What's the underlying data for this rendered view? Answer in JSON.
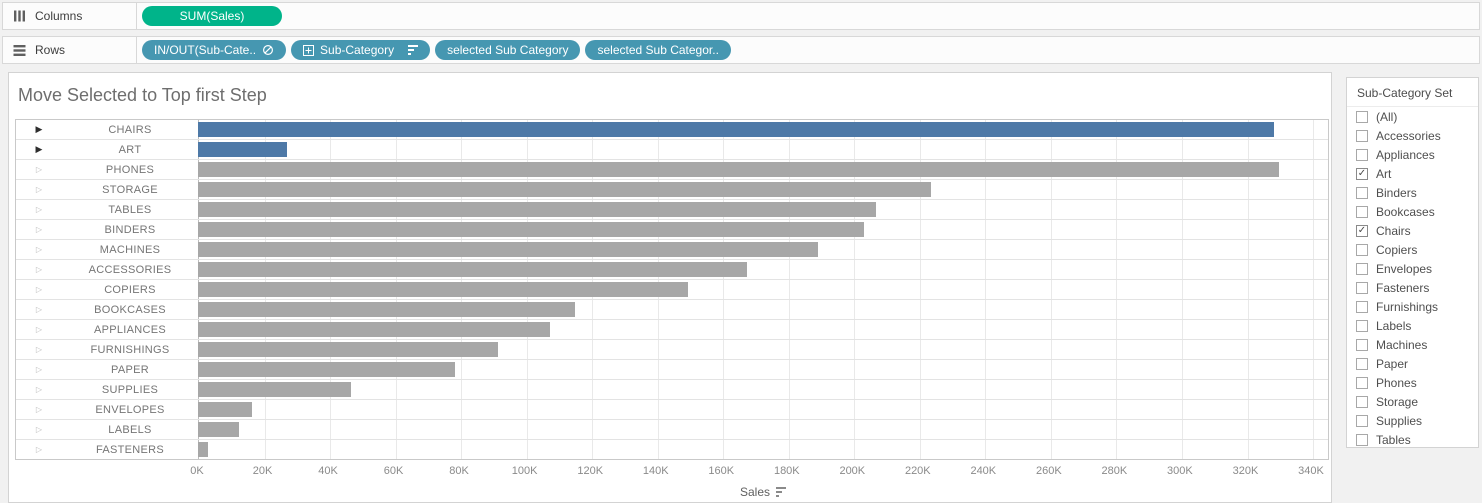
{
  "colors": {
    "green_pill": "#00b48a",
    "blue_pill": "#4697b1",
    "bar_in": "#4e79a7",
    "bar_out": "#a7a7a7"
  },
  "icons": {
    "row_marker_in": "▶",
    "row_marker_out": "▷",
    "checkbox_check": "✓"
  },
  "shelves": {
    "columns": {
      "label": "Columns",
      "pills": [
        {
          "text": "SUM(Sales)",
          "type": "green"
        }
      ]
    },
    "rows": {
      "label": "Rows",
      "pills": [
        {
          "text": "IN/OUT(Sub-Cate..",
          "type": "blue",
          "icon_right": "set-icon"
        },
        {
          "text": "Sub-Category",
          "type": "blue",
          "icon_left": "expand-box-icon",
          "icon_right": "sort-desc-icon"
        },
        {
          "text": "selected Sub Category",
          "type": "blue"
        },
        {
          "text": "selected Sub Categor..",
          "type": "blue"
        }
      ]
    }
  },
  "chart_data": {
    "type": "bar",
    "title": "Move Selected to Top first Step",
    "xlabel": "Sales",
    "orientation": "horizontal",
    "x_ticks": [
      "0K",
      "20K",
      "40K",
      "60K",
      "80K",
      "100K",
      "120K",
      "140K",
      "160K",
      "180K",
      "200K",
      "220K",
      "240K",
      "260K",
      "280K",
      "300K",
      "320K",
      "340K"
    ],
    "x_tick_step_k": 20,
    "x_max_k": 345.5,
    "rows": [
      {
        "label": "CHAIRS",
        "value_k": 328.4,
        "in_set": true
      },
      {
        "label": "ART",
        "value_k": 27.1,
        "in_set": true
      },
      {
        "label": "PHONES",
        "value_k": 330.0,
        "in_set": false
      },
      {
        "label": "STORAGE",
        "value_k": 223.8,
        "in_set": false
      },
      {
        "label": "TABLES",
        "value_k": 207.0,
        "in_set": false
      },
      {
        "label": "BINDERS",
        "value_k": 203.4,
        "in_set": false
      },
      {
        "label": "MACHINES",
        "value_k": 189.2,
        "in_set": false
      },
      {
        "label": "ACCESSORIES",
        "value_k": 167.4,
        "in_set": false
      },
      {
        "label": "COPIERS",
        "value_k": 149.5,
        "in_set": false
      },
      {
        "label": "BOOKCASES",
        "value_k": 114.9,
        "in_set": false
      },
      {
        "label": "APPLIANCES",
        "value_k": 107.5,
        "in_set": false
      },
      {
        "label": "FURNISHINGS",
        "value_k": 91.7,
        "in_set": false
      },
      {
        "label": "PAPER",
        "value_k": 78.5,
        "in_set": false
      },
      {
        "label": "SUPPLIES",
        "value_k": 46.7,
        "in_set": false
      },
      {
        "label": "ENVELOPES",
        "value_k": 16.5,
        "in_set": false
      },
      {
        "label": "LABELS",
        "value_k": 12.5,
        "in_set": false
      },
      {
        "label": "FASTENERS",
        "value_k": 3.0,
        "in_set": false
      }
    ]
  },
  "set_panel": {
    "title": "Sub-Category Set",
    "items": [
      {
        "label": "(All)",
        "checked": false
      },
      {
        "label": "Accessories",
        "checked": false
      },
      {
        "label": "Appliances",
        "checked": false
      },
      {
        "label": "Art",
        "checked": true
      },
      {
        "label": "Binders",
        "checked": false
      },
      {
        "label": "Bookcases",
        "checked": false
      },
      {
        "label": "Chairs",
        "checked": true
      },
      {
        "label": "Copiers",
        "checked": false
      },
      {
        "label": "Envelopes",
        "checked": false
      },
      {
        "label": "Fasteners",
        "checked": false
      },
      {
        "label": "Furnishings",
        "checked": false
      },
      {
        "label": "Labels",
        "checked": false
      },
      {
        "label": "Machines",
        "checked": false
      },
      {
        "label": "Paper",
        "checked": false
      },
      {
        "label": "Phones",
        "checked": false
      },
      {
        "label": "Storage",
        "checked": false
      },
      {
        "label": "Supplies",
        "checked": false
      },
      {
        "label": "Tables",
        "checked": false
      }
    ]
  }
}
